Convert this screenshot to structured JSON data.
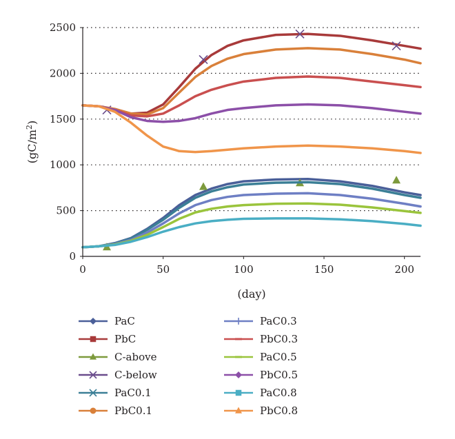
{
  "chart_data": {
    "type": "line",
    "title": "",
    "xlabel": "(day)",
    "ylabel": "(gC/m²)",
    "ylabel_parts": {
      "main": "(gC/m",
      "sup": "2",
      "close": ")"
    },
    "xlim": [
      0,
      210
    ],
    "ylim": [
      0,
      2500
    ],
    "x_ticks": [
      0,
      50,
      100,
      150,
      200
    ],
    "y_ticks": [
      0,
      500,
      1000,
      1500,
      2000,
      2500
    ],
    "grid": "horizontal dotted",
    "legend_position": "bottom, two columns",
    "series": [
      {
        "name": "PaC",
        "kind": "line",
        "color": "#4a5f99",
        "marker": "diamond",
        "x": [
          0,
          10,
          20,
          30,
          40,
          50,
          60,
          70,
          80,
          90,
          100,
          120,
          140,
          160,
          180,
          200,
          210
        ],
        "y": [
          100,
          110,
          145,
          200,
          300,
          420,
          560,
          670,
          740,
          790,
          820,
          840,
          845,
          820,
          770,
          700,
          670
        ]
      },
      {
        "name": "PbC",
        "kind": "line",
        "color": "#a83a3a",
        "marker": "square",
        "x": [
          0,
          10,
          20,
          30,
          40,
          50,
          60,
          70,
          80,
          90,
          100,
          120,
          140,
          160,
          180,
          200,
          210
        ],
        "y": [
          1650,
          1640,
          1610,
          1560,
          1570,
          1660,
          1850,
          2050,
          2200,
          2300,
          2360,
          2420,
          2430,
          2410,
          2360,
          2300,
          2270
        ]
      },
      {
        "name": "C-above",
        "kind": "points",
        "color": "#7d9a3c",
        "marker": "triangle",
        "x": [
          15,
          75,
          135,
          195
        ],
        "y": [
          100,
          760,
          800,
          830
        ]
      },
      {
        "name": "C-below",
        "kind": "points",
        "color": "#6a4c8c",
        "marker": "x",
        "x": [
          15,
          75,
          135,
          195
        ],
        "y": [
          1600,
          2150,
          2430,
          2300
        ]
      },
      {
        "name": "PaC0.1",
        "kind": "line",
        "color": "#3b7f96",
        "marker": "x",
        "x": [
          0,
          10,
          20,
          30,
          40,
          50,
          60,
          70,
          80,
          90,
          100,
          120,
          140,
          160,
          180,
          200,
          210
        ],
        "y": [
          100,
          110,
          140,
          195,
          290,
          400,
          530,
          640,
          710,
          755,
          785,
          805,
          810,
          790,
          740,
          670,
          640
        ]
      },
      {
        "name": "PbC0.1",
        "kind": "line",
        "color": "#d9803a",
        "marker": "circle",
        "x": [
          0,
          10,
          20,
          30,
          40,
          50,
          60,
          70,
          80,
          90,
          100,
          120,
          140,
          160,
          180,
          200,
          210
        ],
        "y": [
          1650,
          1640,
          1610,
          1560,
          1550,
          1620,
          1790,
          1960,
          2080,
          2160,
          2210,
          2260,
          2275,
          2260,
          2210,
          2150,
          2110
        ]
      },
      {
        "name": "PaC0.3",
        "kind": "line",
        "color": "#6e7fc4",
        "marker": "plus",
        "x": [
          0,
          10,
          20,
          30,
          40,
          50,
          60,
          70,
          80,
          90,
          100,
          120,
          140,
          160,
          180,
          200,
          210
        ],
        "y": [
          100,
          110,
          135,
          180,
          260,
          360,
          470,
          560,
          615,
          650,
          670,
          685,
          690,
          670,
          630,
          575,
          545
        ]
      },
      {
        "name": "PbC0.3",
        "kind": "line",
        "color": "#c94f4f",
        "marker": "dash",
        "x": [
          0,
          10,
          20,
          30,
          40,
          50,
          60,
          70,
          80,
          90,
          100,
          120,
          140,
          160,
          180,
          200,
          210
        ],
        "y": [
          1650,
          1640,
          1600,
          1540,
          1530,
          1560,
          1650,
          1750,
          1820,
          1870,
          1910,
          1950,
          1965,
          1950,
          1910,
          1870,
          1850
        ]
      },
      {
        "name": "PaC0.5",
        "kind": "line",
        "color": "#9ac43c",
        "marker": "dash",
        "x": [
          0,
          10,
          20,
          30,
          40,
          50,
          60,
          70,
          80,
          90,
          100,
          120,
          140,
          160,
          180,
          200,
          210
        ],
        "y": [
          100,
          110,
          130,
          170,
          235,
          320,
          410,
          480,
          520,
          545,
          560,
          575,
          578,
          565,
          535,
          495,
          475
        ]
      },
      {
        "name": "PbC0.5",
        "kind": "line",
        "color": "#8c4fa8",
        "marker": "diamond",
        "x": [
          0,
          10,
          20,
          30,
          40,
          50,
          60,
          70,
          80,
          90,
          100,
          120,
          140,
          160,
          180,
          200,
          210
        ],
        "y": [
          1650,
          1640,
          1600,
          1520,
          1480,
          1470,
          1480,
          1510,
          1560,
          1600,
          1620,
          1650,
          1660,
          1650,
          1620,
          1580,
          1560
        ]
      },
      {
        "name": "PaC0.8",
        "kind": "line",
        "color": "#4aaec4",
        "marker": "square",
        "x": [
          0,
          10,
          20,
          30,
          40,
          50,
          60,
          70,
          80,
          90,
          100,
          120,
          140,
          160,
          180,
          200,
          210
        ],
        "y": [
          100,
          110,
          125,
          160,
          210,
          270,
          320,
          360,
          385,
          400,
          410,
          415,
          415,
          405,
          385,
          355,
          335
        ]
      },
      {
        "name": "PbC0.8",
        "kind": "line",
        "color": "#f0954a",
        "marker": "triangle",
        "x": [
          0,
          10,
          20,
          30,
          40,
          50,
          60,
          70,
          80,
          90,
          100,
          120,
          140,
          160,
          180,
          200,
          210
        ],
        "y": [
          1650,
          1640,
          1580,
          1460,
          1320,
          1200,
          1150,
          1140,
          1150,
          1165,
          1180,
          1200,
          1210,
          1200,
          1180,
          1150,
          1130
        ]
      }
    ]
  }
}
